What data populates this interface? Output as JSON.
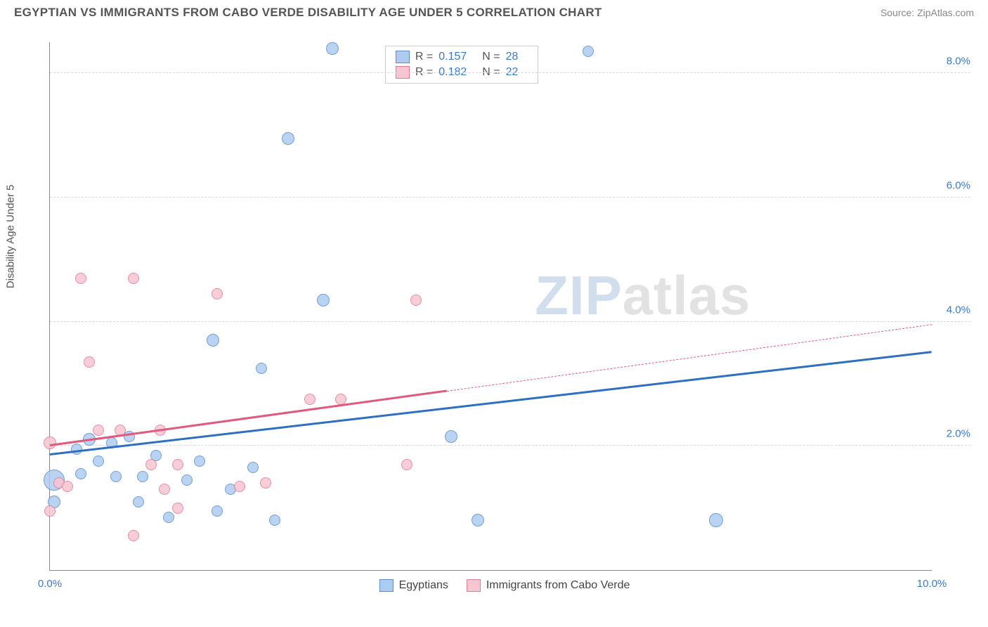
{
  "header": {
    "title": "EGYPTIAN VS IMMIGRANTS FROM CABO VERDE DISABILITY AGE UNDER 5 CORRELATION CHART",
    "source_prefix": "Source: ",
    "source": "ZipAtlas.com"
  },
  "watermark": {
    "z": "ZIP",
    "rest": "atlas"
  },
  "chart": {
    "type": "scatter",
    "y_axis_label": "Disability Age Under 5",
    "background_color": "#ffffff",
    "grid_color": "#d8d8d8",
    "axis_color": "#888888",
    "tick_label_color": "#3d7ac6",
    "xlim": [
      0.0,
      10.0
    ],
    "ylim": [
      0.0,
      8.5
    ],
    "x_ticks": [
      {
        "value": 0.0,
        "label": "0.0%"
      },
      {
        "value": 10.0,
        "label": "10.0%"
      }
    ],
    "y_ticks": [
      {
        "value": 2.0,
        "label": "2.0%"
      },
      {
        "value": 4.0,
        "label": "4.0%"
      },
      {
        "value": 6.0,
        "label": "6.0%"
      },
      {
        "value": 8.0,
        "label": "8.0%"
      }
    ],
    "series": [
      {
        "name": "Egyptians",
        "fill_color": "#aeccf0",
        "stroke_color": "#5a8fce",
        "line_color": "#2f6fc0",
        "r_label": "R = ",
        "r_value": "0.157",
        "n_label": "N = ",
        "n_value": "28",
        "trend": {
          "x1": 0.0,
          "y1": 1.85,
          "x2": 10.0,
          "y2": 3.5,
          "solid_until_x": 10.0
        },
        "marker_radius": 9,
        "points": [
          {
            "x": 0.05,
            "y": 1.45,
            "r": 15
          },
          {
            "x": 0.05,
            "y": 1.1,
            "r": 9
          },
          {
            "x": 0.3,
            "y": 1.95,
            "r": 8
          },
          {
            "x": 0.35,
            "y": 1.55,
            "r": 8
          },
          {
            "x": 0.45,
            "y": 2.1,
            "r": 9
          },
          {
            "x": 0.7,
            "y": 2.05,
            "r": 8
          },
          {
            "x": 0.75,
            "y": 1.5,
            "r": 8
          },
          {
            "x": 0.9,
            "y": 2.15,
            "r": 8
          },
          {
            "x": 1.05,
            "y": 1.5,
            "r": 8
          },
          {
            "x": 1.2,
            "y": 1.85,
            "r": 8
          },
          {
            "x": 1.35,
            "y": 0.85,
            "r": 8
          },
          {
            "x": 1.55,
            "y": 1.45,
            "r": 8
          },
          {
            "x": 1.7,
            "y": 1.75,
            "r": 8
          },
          {
            "x": 1.85,
            "y": 3.7,
            "r": 9
          },
          {
            "x": 1.9,
            "y": 0.95,
            "r": 8
          },
          {
            "x": 2.05,
            "y": 1.3,
            "r": 8
          },
          {
            "x": 2.3,
            "y": 1.65,
            "r": 8
          },
          {
            "x": 2.4,
            "y": 3.25,
            "r": 8
          },
          {
            "x": 2.55,
            "y": 0.8,
            "r": 8
          },
          {
            "x": 2.7,
            "y": 6.95,
            "r": 9
          },
          {
            "x": 3.1,
            "y": 4.35,
            "r": 9
          },
          {
            "x": 3.2,
            "y": 8.4,
            "r": 9
          },
          {
            "x": 4.55,
            "y": 2.15,
            "r": 9
          },
          {
            "x": 4.85,
            "y": 0.8,
            "r": 9
          },
          {
            "x": 6.1,
            "y": 8.35,
            "r": 8
          },
          {
            "x": 7.55,
            "y": 0.8,
            "r": 10
          },
          {
            "x": 0.55,
            "y": 1.75,
            "r": 8
          },
          {
            "x": 1.0,
            "y": 1.1,
            "r": 8
          }
        ]
      },
      {
        "name": "Immigrants from Cabo Verde",
        "fill_color": "#f6c6d2",
        "stroke_color": "#e37a97",
        "line_color": "#e15a7e",
        "r_label": "R = ",
        "r_value": "0.182",
        "n_label": "N = ",
        "n_value": "22",
        "trend": {
          "x1": 0.0,
          "y1": 2.0,
          "x2": 10.0,
          "y2": 3.95,
          "solid_until_x": 4.5
        },
        "marker_radius": 8,
        "points": [
          {
            "x": 0.0,
            "y": 2.05,
            "r": 9
          },
          {
            "x": 0.0,
            "y": 0.95,
            "r": 8
          },
          {
            "x": 0.1,
            "y": 1.4,
            "r": 8
          },
          {
            "x": 0.2,
            "y": 1.35,
            "r": 8
          },
          {
            "x": 0.35,
            "y": 4.7,
            "r": 8
          },
          {
            "x": 0.45,
            "y": 3.35,
            "r": 8
          },
          {
            "x": 0.55,
            "y": 2.25,
            "r": 8
          },
          {
            "x": 0.8,
            "y": 2.25,
            "r": 8
          },
          {
            "x": 0.95,
            "y": 4.7,
            "r": 8
          },
          {
            "x": 0.95,
            "y": 0.55,
            "r": 8
          },
          {
            "x": 1.15,
            "y": 1.7,
            "r": 8
          },
          {
            "x": 1.25,
            "y": 2.25,
            "r": 8
          },
          {
            "x": 1.3,
            "y": 1.3,
            "r": 8
          },
          {
            "x": 1.45,
            "y": 1.7,
            "r": 8
          },
          {
            "x": 1.45,
            "y": 1.0,
            "r": 8
          },
          {
            "x": 1.9,
            "y": 4.45,
            "r": 8
          },
          {
            "x": 2.15,
            "y": 1.35,
            "r": 8
          },
          {
            "x": 2.45,
            "y": 1.4,
            "r": 8
          },
          {
            "x": 2.95,
            "y": 2.75,
            "r": 8
          },
          {
            "x": 3.3,
            "y": 2.75,
            "r": 8
          },
          {
            "x": 4.05,
            "y": 1.7,
            "r": 8
          },
          {
            "x": 4.15,
            "y": 4.35,
            "r": 8
          }
        ]
      }
    ]
  }
}
